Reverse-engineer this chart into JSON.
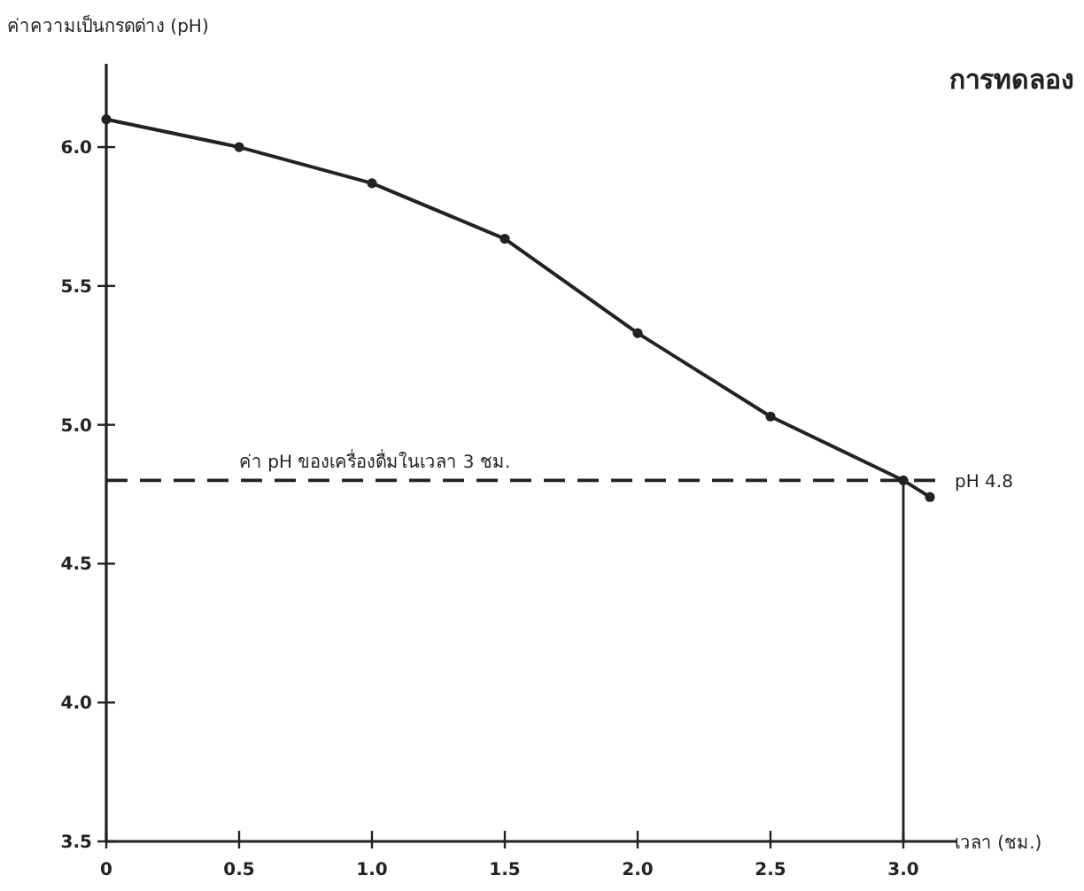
{
  "chart_data": {
    "type": "line",
    "title": "การทดลอง",
    "xlabel": "เวลา (ชม.)",
    "ylabel": "ค่าความเป็นกรดด่าง (pH)",
    "x": [
      0,
      0.5,
      1.0,
      1.5,
      2.0,
      2.5,
      3.0,
      3.1
    ],
    "series": [
      {
        "color": "#222222",
        "values": [
          6.1,
          6.0,
          5.87,
          5.67,
          5.33,
          5.03,
          4.8,
          4.74
        ]
      }
    ],
    "xlim": [
      0,
      3.2
    ],
    "ylim": [
      3.5,
      6.3
    ],
    "xticks": [
      0,
      0.5,
      {
        "value": 1,
        "label": "1.0"
      },
      1.5,
      {
        "value": 2,
        "label": "2.0"
      },
      2.5,
      {
        "value": 3,
        "label": "3.0"
      }
    ],
    "yticks": [
      3.5,
      {
        "value": 4,
        "label": "4.0"
      },
      4.5,
      {
        "value": 5,
        "label": "5.0"
      },
      5.5,
      {
        "value": 6,
        "label": "6.0"
      }
    ],
    "ref_lines": [
      {
        "axis": "y",
        "value": 4.8,
        "label": "pH 4.8",
        "line_style": "dashed"
      },
      {
        "axis": "x",
        "value": 3.0,
        "label": null,
        "line_style": "solid"
      }
    ],
    "annotations": [
      {
        "text": "ค่า pH ของเครื่องดื่มในเวลา 3 ชม.",
        "x": 0.5,
        "y": 4.8
      }
    ],
    "marker": "circle",
    "line_style": "solid"
  }
}
